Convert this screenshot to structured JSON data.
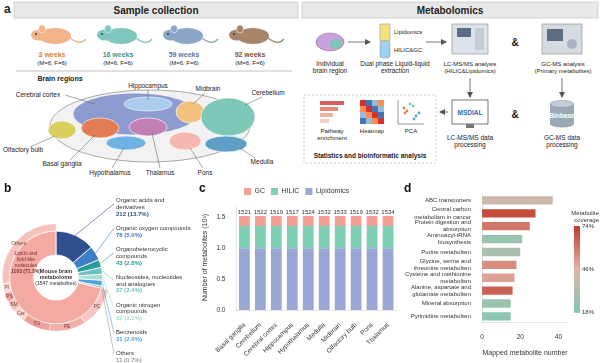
{
  "panel_a": {
    "panel": "a",
    "sample_collection": {
      "title": "Sample collection",
      "groups": [
        {
          "age": "3 weeks",
          "n": "(M=6, F=6)"
        },
        {
          "age": "16 weeks",
          "n": "(M=6, F=6)"
        },
        {
          "age": "59 weeks",
          "n": "(M=6, F=6)"
        },
        {
          "age": "92 weeks",
          "n": "(M=6, F=6)"
        }
      ],
      "brain_regions_title": "Brain regions",
      "regions": [
        "Cerebral cortex",
        "Hippocampus",
        "Midbrain",
        "Cerebellum",
        "Olfactory bulb",
        "Basal ganglia",
        "Thalamus",
        "Hypothalamus",
        "Pons",
        "Medulla"
      ]
    },
    "metabolomics": {
      "title": "Metabolomics",
      "and": "&",
      "sample": "Individual brain region",
      "extraction": "Dual phase Liquid-liquid extraction",
      "phases": [
        "Lipidomics",
        "HILIC&GC"
      ],
      "lc_ms": "LC-MS/MS analysis (HILIC&Lipidomics)",
      "gc_ms": "GC-MS analysis (Primary metabolites)",
      "msdial": "MSDIAL",
      "lc_processing": "LC-MS/MS data processing",
      "binbase": "Binbase",
      "gc_processing": "GC-MS data processing",
      "analyses": [
        "Pathway enrichment",
        "Heatmap",
        "PCA"
      ],
      "statistics": "Statistics and bioinformatic analysis"
    }
  },
  "chart_data": [
    {
      "panel": "b",
      "type": "doughnut",
      "center_text": [
        "Mouse brain",
        "metabolome",
        "(1547 metabolites)"
      ],
      "categories": [
        "Organic acids and derivatives",
        "Organic oxygen compounds",
        "Organoheterocyclic compounds",
        "Nucleosides, nucleotides and analogues",
        "Organic nitrogen compounds",
        "Benzenoids",
        "Others",
        "Lipids and lipid-like molecules"
      ],
      "values": [
        212,
        78,
        43,
        37,
        32,
        31,
        11,
        1103
      ],
      "value_labels": [
        "212 (13.7%)",
        "78 (5.0%)",
        "43 (2.8%)",
        "37 (2.4%)",
        "32 (2.1%)",
        "31 (2.0%)",
        "11 (0.7%)",
        "1103 (71.3%)"
      ],
      "colors": [
        "#2f4f8f",
        "#3f7fc8",
        "#2a9a96",
        "#6cc3bd",
        "#a6dcd4",
        "#4fa3d6",
        "#9e9e9e",
        "#f4aaa3"
      ],
      "data_labels": true,
      "lipid_subclasses": {
        "parent": "Lipids and lipid-like molecules",
        "categories": [
          "PC",
          "PE",
          "TG",
          "Cer",
          "SM",
          "PS",
          "PI",
          "Others"
        ],
        "values": [
          190,
          170,
          130,
          60,
          50,
          45,
          45,
          413
        ],
        "colors": [
          "#f7c6c1",
          "#f2b0a9",
          "#eda097",
          "#f9d4cf",
          "#f4bdb6",
          "#efa69e",
          "#fbdcd8",
          "#f5c2bc"
        ]
      }
    },
    {
      "panel": "c",
      "type": "bar",
      "stacked": true,
      "ylabel": "Number of metabolites (10³)",
      "categories": [
        "Basal ganglia",
        "Cerebellum",
        "Cerebral cortex",
        "Hippocampus",
        "Hypothalamus",
        "Medulla",
        "Midbrain",
        "Olfactory bulb",
        "Pons",
        "Thalamus"
      ],
      "series": [
        {
          "name": "Lipidomics",
          "color": "#9aa8d8",
          "values": [
            1.0,
            1.0,
            1.0,
            1.0,
            1.0,
            1.0,
            1.0,
            1.0,
            1.0,
            1.0
          ]
        },
        {
          "name": "HILIC",
          "color": "#7fcfb6",
          "values": [
            0.36,
            0.36,
            0.36,
            0.36,
            0.36,
            0.36,
            0.36,
            0.36,
            0.36,
            0.36
          ]
        },
        {
          "name": "GC",
          "color": "#f3a195",
          "values": [
            0.16,
            0.16,
            0.16,
            0.16,
            0.16,
            0.16,
            0.16,
            0.16,
            0.16,
            0.16
          ]
        }
      ],
      "totals": [
        1521,
        1522,
        1519,
        1517,
        1524,
        1532,
        1533,
        1519,
        1532,
        1534
      ],
      "ylim": [
        0,
        1.7
      ],
      "yticks": [
        {
          "value": 0,
          "label": "0.0"
        },
        0.5,
        {
          "value": 1,
          "label": "1.0"
        },
        1.5
      ],
      "grid": false,
      "legend": "top"
    },
    {
      "panel": "d",
      "type": "bar",
      "orientation": "horizontal",
      "xlabel": "Mapped metabolite number",
      "categories": [
        "ABC transporters",
        "Central carbon metabolism in cancer",
        "Protein digestion and absorption",
        "Aminoacyl-tRNA biosynthesis",
        "Purine metabolism",
        "Glycine, serine and threonine metabolism",
        "Cysteine and methionine metabolism",
        "Alanine, aspartate and glutamate metabolism",
        "Mineral absorption",
        "Pyrimidine metabolism"
      ],
      "values": [
        37,
        28,
        25,
        21,
        20,
        18,
        17,
        16,
        15,
        15
      ],
      "coverage": [
        40,
        70,
        60,
        25,
        30,
        55,
        50,
        65,
        25,
        22
      ],
      "coverage_label": "Metabolite coverage",
      "coverage_range": [
        18,
        74
      ],
      "coverage_ticks": [
        {
          "value": 18,
          "label": "18%"
        },
        {
          "value": 46,
          "label": "46%"
        },
        {
          "value": 74,
          "label": "74%"
        }
      ],
      "xlim": [
        0,
        45
      ],
      "xticks": [
        0,
        20,
        40
      ],
      "grid": false
    }
  ]
}
